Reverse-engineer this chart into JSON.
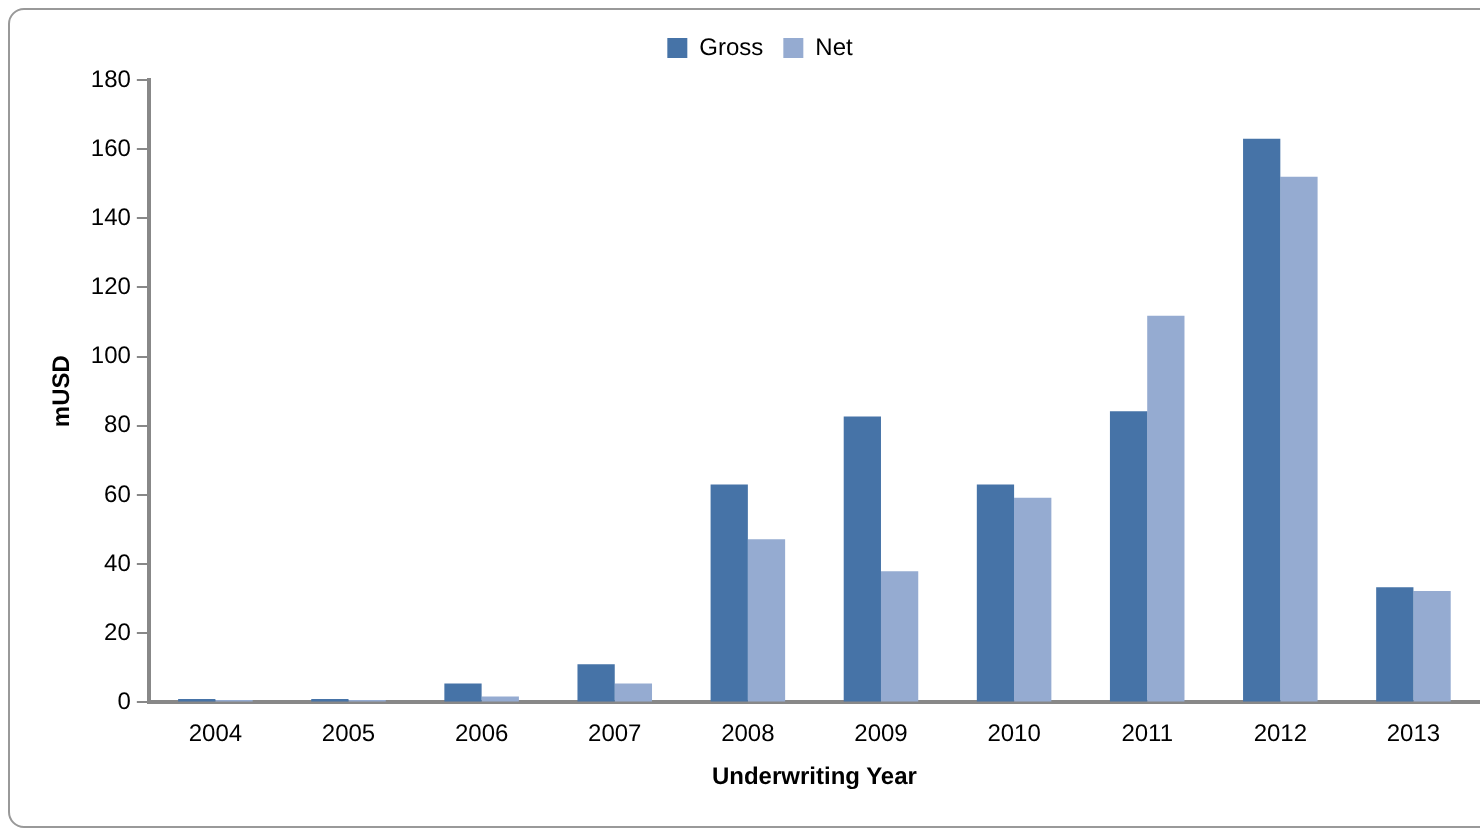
{
  "chart_data": {
    "type": "bar",
    "xlabel": "Underwriting Year",
    "ylabel": "mUSD",
    "categories": [
      "2004",
      "2005",
      "2006",
      "2007",
      "2008",
      "2009",
      "2010",
      "2011",
      "2012",
      "2013"
    ],
    "series": [
      {
        "name": "Gross",
        "color": "#4673a7",
        "values": [
          1,
          1,
          5.5,
          11,
          63,
          82.7,
          63,
          84.2,
          163,
          33.3
        ]
      },
      {
        "name": "Net",
        "color": "#95abd1",
        "values": [
          0.7,
          0.7,
          1.7,
          5.5,
          47.2,
          37.9,
          59.2,
          111.8,
          152,
          32.2
        ]
      }
    ],
    "ylim": [
      0,
      180
    ],
    "yticks": [
      0,
      20,
      40,
      60,
      80,
      100,
      120,
      140,
      160,
      180
    ],
    "grid": false,
    "legend": "top"
  }
}
